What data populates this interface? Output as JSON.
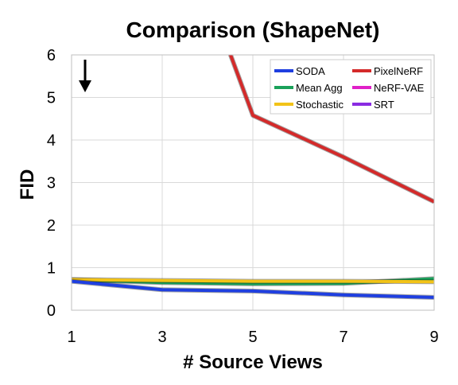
{
  "chart_data": {
    "type": "line",
    "title": "Comparison (ShapeNet)",
    "xlabel": "# Source Views",
    "ylabel": "FID",
    "x": [
      1,
      3,
      5,
      7,
      9
    ],
    "xlim": [
      1,
      9
    ],
    "ylim": [
      0,
      6
    ],
    "xticks": [
      "1",
      "3",
      "5",
      "7",
      "9"
    ],
    "yticks": [
      "0",
      "1",
      "2",
      "3",
      "4",
      "5",
      "6"
    ],
    "grid": true,
    "legend_position": "top-right",
    "annotation": "↓",
    "series": [
      {
        "name": "SODA",
        "color": "#1f3fe0",
        "values": [
          0.68,
          0.48,
          0.45,
          0.36,
          0.3
        ]
      },
      {
        "name": "PixelNeRF",
        "color": "#d42a2a",
        "values": [
          null,
          null,
          4.58,
          3.6,
          2.55
        ],
        "extends_above_top": true
      },
      {
        "name": "Mean Agg",
        "color": "#1aa15a",
        "values": [
          0.72,
          0.65,
          0.62,
          0.63,
          0.74
        ]
      },
      {
        "name": "NeRF-VAE",
        "color": "#e020c8",
        "values": [
          null,
          null,
          null,
          null,
          null
        ]
      },
      {
        "name": "Stochastic",
        "color": "#f2c318",
        "values": [
          0.72,
          0.7,
          0.68,
          0.68,
          0.67
        ]
      },
      {
        "name": "SRT",
        "color": "#8a2be2",
        "values": [
          null,
          null,
          null,
          null,
          null
        ]
      }
    ]
  }
}
